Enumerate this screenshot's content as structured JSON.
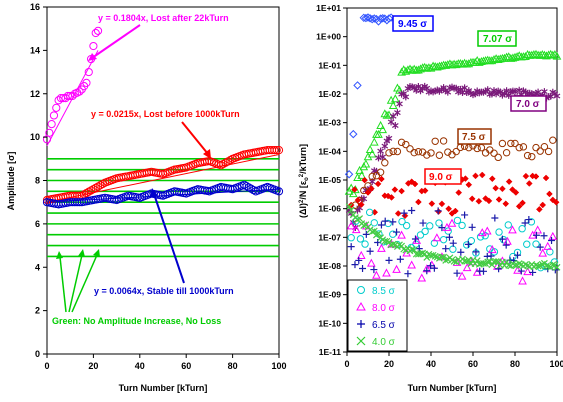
{
  "chart_data": [
    {
      "type": "scatter",
      "ylabel": "Amplitude [σ]",
      "xlabel": "Turn Number [kTurn]",
      "xlim": [
        0,
        100
      ],
      "ylim": [
        0,
        16
      ],
      "xticks": [
        "0",
        "20",
        "40",
        "60",
        "80",
        "100"
      ],
      "yticks": [
        "0",
        "2",
        "4",
        "6",
        "8",
        "10",
        "12",
        "14",
        "16"
      ],
      "grid": false,
      "green_levels": [
        4.5,
        5.0,
        5.5,
        6.0,
        6.5,
        7.0,
        7.5,
        8.0,
        8.5,
        9.0
      ],
      "series": [
        {
          "color": "#ff00ff",
          "points": [
            [
              0,
              9.9
            ],
            [
              1,
              10.2
            ],
            [
              3,
              11.0
            ],
            [
              5,
              11.7
            ],
            [
              6,
              11.8
            ],
            [
              8,
              11.8
            ],
            [
              9,
              11.9
            ],
            [
              11,
              11.9
            ],
            [
              12,
              12.0
            ],
            [
              14,
              12.1
            ],
            [
              15,
              12.2
            ],
            [
              17,
              12.5
            ],
            [
              18,
              13.0
            ],
            [
              19,
              13.6
            ],
            [
              20,
              14.2
            ],
            [
              21,
              14.8
            ],
            [
              22,
              14.9
            ]
          ]
        },
        {
          "color": "#ff0000",
          "points": [
            [
              0,
              7.1
            ],
            [
              5,
              7.2
            ],
            [
              10,
              7.3
            ],
            [
              15,
              7.3
            ],
            [
              20,
              7.6
            ],
            [
              25,
              7.9
            ],
            [
              30,
              8.1
            ],
            [
              35,
              8.2
            ],
            [
              40,
              8.3
            ],
            [
              45,
              8.4
            ],
            [
              50,
              8.3
            ],
            [
              55,
              8.5
            ],
            [
              60,
              8.6
            ],
            [
              65,
              8.8
            ],
            [
              70,
              8.9
            ],
            [
              75,
              8.7
            ],
            [
              80,
              9.0
            ],
            [
              85,
              9.2
            ],
            [
              90,
              9.3
            ],
            [
              95,
              9.4
            ],
            [
              100,
              9.4
            ]
          ]
        },
        {
          "color": "#0000cc",
          "points": [
            [
              0,
              7.0
            ],
            [
              5,
              6.9
            ],
            [
              10,
              7.0
            ],
            [
              15,
              7.0
            ],
            [
              20,
              7.1
            ],
            [
              25,
              7.2
            ],
            [
              30,
              7.1
            ],
            [
              35,
              7.3
            ],
            [
              40,
              7.2
            ],
            [
              45,
              7.4
            ],
            [
              50,
              7.3
            ],
            [
              55,
              7.5
            ],
            [
              60,
              7.4
            ],
            [
              65,
              7.6
            ],
            [
              70,
              7.5
            ],
            [
              75,
              7.7
            ],
            [
              80,
              7.6
            ],
            [
              85,
              7.8
            ],
            [
              90,
              7.5
            ],
            [
              95,
              7.7
            ],
            [
              100,
              7.5
            ]
          ]
        }
      ],
      "fits": [
        {
          "color": "#ff00ff",
          "from": [
            0,
            9.6
          ],
          "to": [
            22,
            14.0
          ]
        },
        {
          "color": "#ff0000",
          "from": [
            0,
            7.0
          ],
          "to": [
            100,
            9.2
          ]
        },
        {
          "color": "#0000cc",
          "from": [
            0,
            7.0
          ],
          "to": [
            100,
            7.6
          ]
        }
      ],
      "annotations": [
        {
          "text": "y = 0.1804x, Lost after 22kTurn",
          "color": "#ff00ff"
        },
        {
          "text": "y = 0.0215x, Lost before 1000kTurn",
          "color": "#ff0000"
        },
        {
          "text": "y = 0.0064x, Stable till 1000kTurn",
          "color": "#0000cc"
        },
        {
          "text": "Green: No Amplitude Increase, No Loss",
          "color": "#00cc00"
        }
      ]
    },
    {
      "type": "scatter",
      "ylabel": "(ΔI)²/N [ε₀²/kTurn]",
      "xlabel": "Turn Number [kTurn]",
      "xlim": [
        0,
        100
      ],
      "ylim_log10": [
        -11,
        1
      ],
      "yscale": "log",
      "xticks": [
        "0",
        "20",
        "40",
        "60",
        "80",
        "100"
      ],
      "yticks": [
        "1E+01",
        "1E+00",
        "1E-01",
        "1E-02",
        "1E-03",
        "1E-04",
        "1E-05",
        "1E-06",
        "1E-07",
        "1E-08",
        "1E-09",
        "1E-10",
        "1E-11"
      ],
      "legend_placement": "bottom-left",
      "legend": [
        {
          "label": "8.5 σ",
          "marker": "circle",
          "color": "#00cccc"
        },
        {
          "label": "8.0 σ",
          "marker": "triangle",
          "color": "#ff00ff"
        },
        {
          "label": "6.5 σ",
          "marker": "plus",
          "color": "#0000aa"
        },
        {
          "label": "4.0 σ",
          "marker": "x",
          "color": "#33cc33"
        }
      ],
      "curve_labels": [
        {
          "text": "9.45 σ",
          "color": "#0000ff"
        },
        {
          "text": "7.07 σ",
          "color": "#00cc00"
        },
        {
          "text": "7.0 σ",
          "color": "#800080"
        },
        {
          "text": "7.5 σ",
          "color": "#993300"
        },
        {
          "text": "9.0 σ",
          "color": "#ff0000"
        }
      ]
    }
  ]
}
